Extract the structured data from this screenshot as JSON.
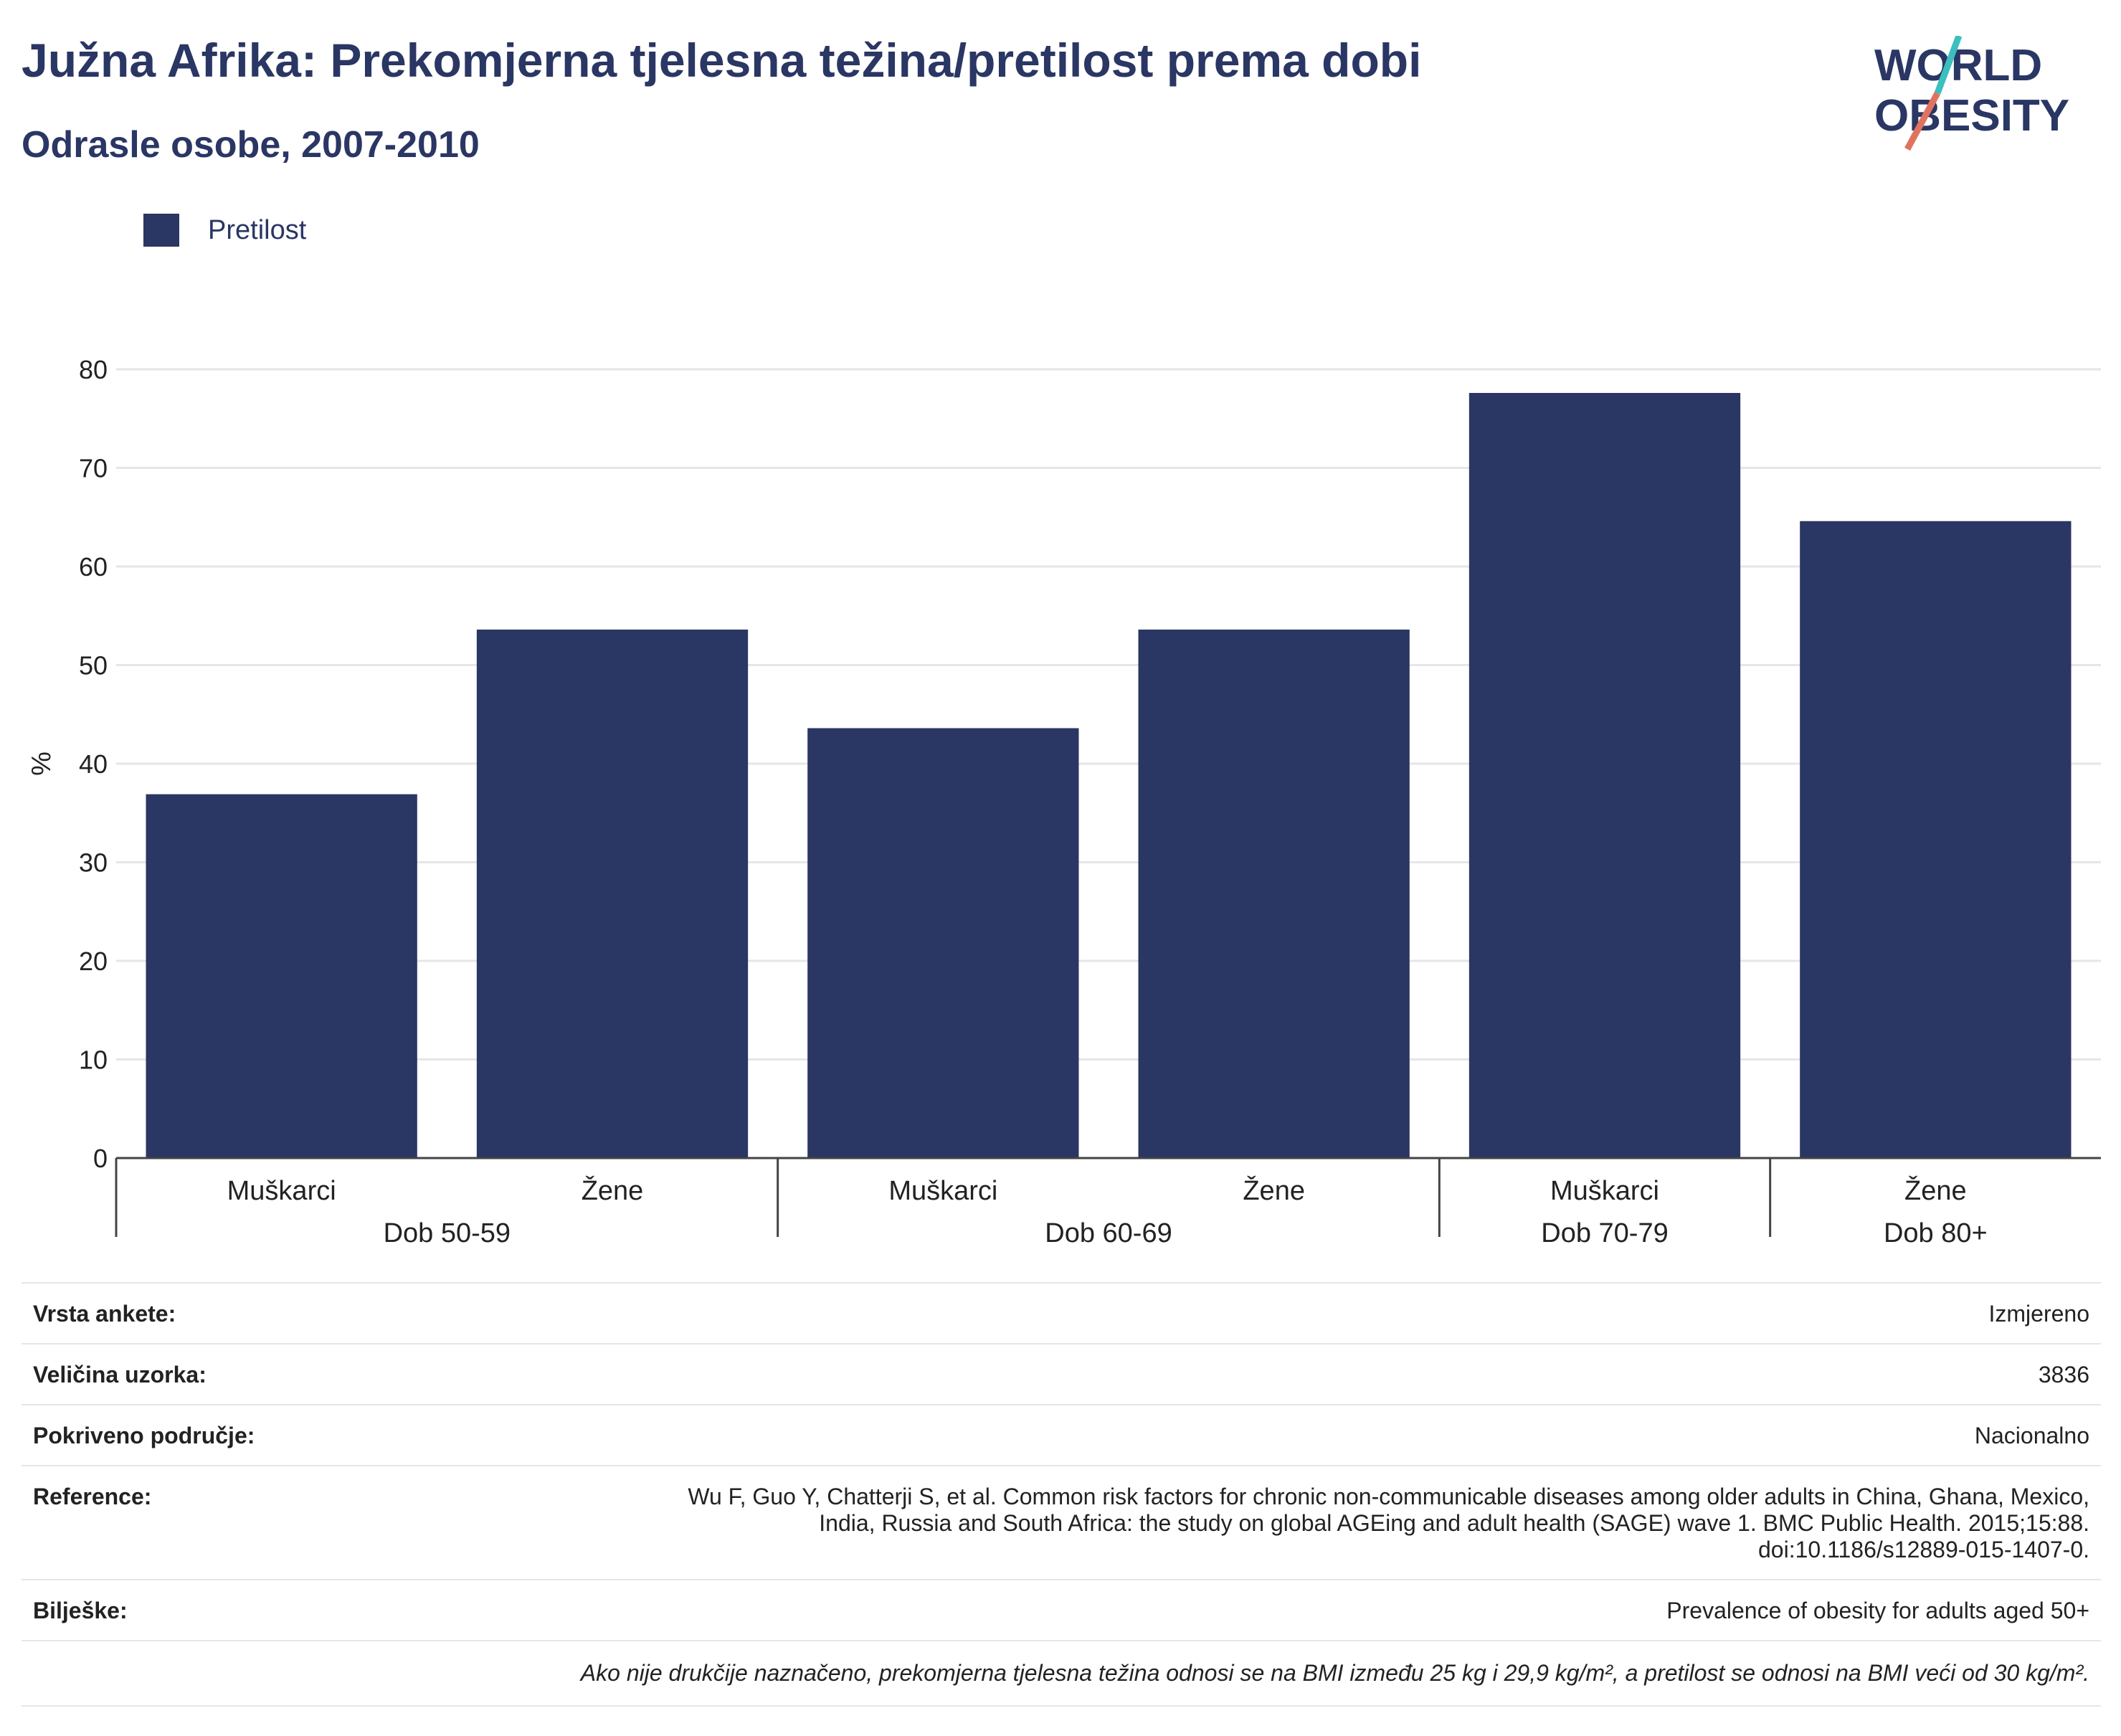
{
  "header": {
    "title": "Južna Afrika: Prekomjerna tjelesna težina/pretilost prema dobi",
    "subtitle": "Odrasle osobe, 2007-2010"
  },
  "logo": {
    "line1": "WORLD",
    "line2": "OBESITY",
    "accent_teal": "#3bbfbf",
    "accent_coral": "#e0735f"
  },
  "legend": {
    "items": [
      {
        "label": "Pretilost",
        "color": "#2a3663"
      }
    ]
  },
  "chart_data": {
    "type": "bar",
    "ylabel": "%",
    "ylim": [
      0,
      80
    ],
    "yticks": [
      0,
      10,
      20,
      30,
      40,
      50,
      60,
      70,
      80
    ],
    "grid": true,
    "legend_position": "top-left",
    "categories": [
      "Muškarci",
      "Žene",
      "Muškarci",
      "Žene",
      "Muškarci",
      "Žene"
    ],
    "groups": [
      {
        "label": "Dob 50-59",
        "count": 2
      },
      {
        "label": "Dob 60-69",
        "count": 2
      },
      {
        "label": "Dob 70-79",
        "count": 1
      },
      {
        "label": "Dob 80+",
        "count": 1
      }
    ],
    "series": [
      {
        "name": "Pretilost",
        "color": "#2a3663",
        "values": [
          36.9,
          53.6,
          43.6,
          53.6,
          77.6,
          64.6
        ]
      }
    ]
  },
  "info": {
    "survey_type": {
      "label": "Vrsta ankete:",
      "value": "Izmjereno"
    },
    "sample_size": {
      "label": "Veličina uzorka:",
      "value": "3836"
    },
    "coverage": {
      "label": "Pokriveno područje:",
      "value": "Nacionalno"
    },
    "reference": {
      "label": "Reference:",
      "lines": [
        "Wu F, Guo Y, Chatterji S, et al. Common risk factors for chronic non-communicable diseases among older adults in China, Ghana, Mexico,",
        "India, Russia and South Africa: the study on global AGEing and adult health (SAGE) wave 1. BMC Public Health. 2015;15:88.",
        "doi:10.1186/s12889-015-1407-0."
      ]
    },
    "notes": {
      "label": "Bilješke:",
      "value": "Prevalence of obesity for adults aged 50+"
    },
    "footnote": "Ako nije drukčije naznačeno, prekomjerna tjelesna težina odnosi se na BMI između 25 kg i 29,9 kg/m², a pretilost se odnosi na BMI veći od 30 kg/m²."
  }
}
